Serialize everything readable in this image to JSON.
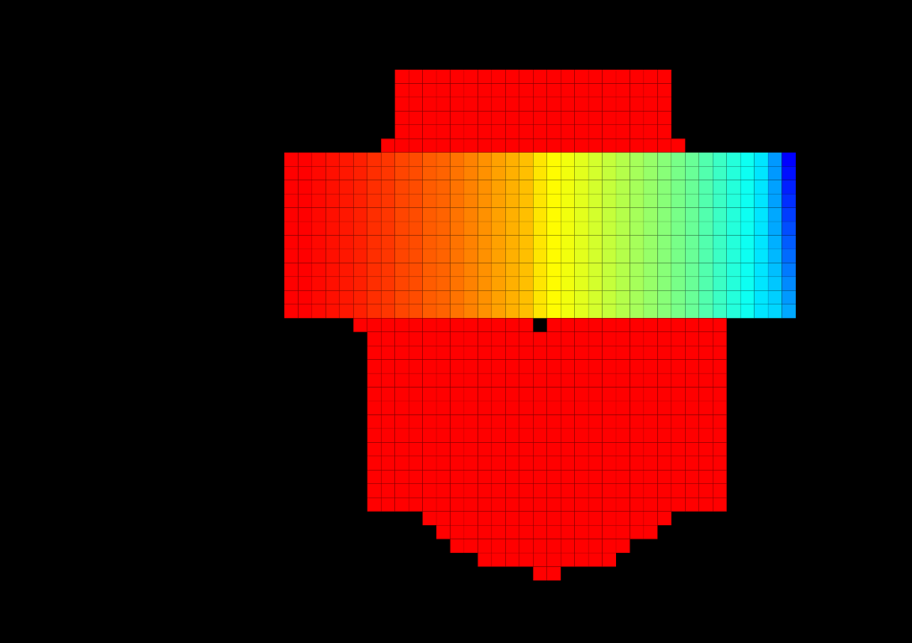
{
  "chart_data": {
    "type": "heatmap",
    "tick_labels": false,
    "zlim": [
      0,
      1
    ],
    "z": [
      [
        null,
        null,
        null,
        null,
        null,
        null,
        null,
        null,
        1,
        1,
        1,
        1,
        1,
        1,
        1,
        1,
        1,
        1,
        1,
        1,
        1,
        1,
        1,
        1,
        1,
        1,
        1,
        1,
        null,
        null,
        null,
        null,
        null,
        null,
        null,
        null,
        null
      ],
      [
        null,
        null,
        null,
        null,
        null,
        null,
        null,
        null,
        1,
        1,
        1,
        1,
        1,
        1,
        1,
        1,
        1,
        1,
        1,
        1,
        1,
        1,
        1,
        1,
        1,
        1,
        1,
        1,
        null,
        null,
        null,
        null,
        null,
        null,
        null,
        null,
        null
      ],
      [
        null,
        null,
        null,
        null,
        null,
        null,
        null,
        null,
        1,
        1,
        1,
        1,
        1,
        1,
        1,
        1,
        1,
        1,
        1,
        1,
        1,
        1,
        1,
        1,
        1,
        1,
        1,
        1,
        null,
        null,
        null,
        null,
        null,
        null,
        null,
        null,
        null
      ],
      [
        null,
        null,
        null,
        null,
        null,
        null,
        null,
        null,
        1,
        1,
        1,
        1,
        1,
        1,
        1,
        1,
        1,
        1,
        1,
        1,
        1,
        1,
        1,
        1,
        1,
        1,
        1,
        1,
        null,
        null,
        null,
        null,
        null,
        null,
        null,
        null,
        null
      ],
      [
        null,
        null,
        null,
        null,
        null,
        null,
        null,
        null,
        1,
        1,
        1,
        1,
        1,
        1,
        1,
        1,
        1,
        1,
        1,
        1,
        1,
        1,
        1,
        1,
        1,
        1,
        1,
        1,
        null,
        null,
        null,
        null,
        null,
        null,
        null,
        null,
        null
      ],
      [
        null,
        null,
        null,
        null,
        null,
        null,
        null,
        1,
        1,
        1,
        1,
        1,
        1,
        1,
        1,
        1,
        1,
        1,
        1,
        1,
        1,
        1,
        1,
        1,
        1,
        1,
        1,
        1,
        1,
        null,
        null,
        null,
        null,
        null,
        null,
        null,
        null
      ],
      [
        1,
        1,
        0.99,
        0.98,
        0.97,
        0.96,
        0.94,
        0.93,
        0.91,
        0.9,
        0.88,
        0.87,
        0.85,
        0.83,
        0.81,
        0.79,
        0.77,
        0.75,
        0.7,
        0.67,
        0.65,
        0.63,
        0.61,
        0.59,
        0.57,
        0.55,
        0.53,
        0.51,
        0.49,
        0.47,
        0.44,
        0.41,
        0.38,
        0.35,
        0.3,
        0.2,
        0.0
      ],
      [
        1,
        1,
        0.99,
        0.98,
        0.97,
        0.96,
        0.94,
        0.93,
        0.91,
        0.9,
        0.88,
        0.87,
        0.85,
        0.83,
        0.81,
        0.79,
        0.77,
        0.75,
        0.7,
        0.67,
        0.65,
        0.63,
        0.61,
        0.59,
        0.57,
        0.55,
        0.53,
        0.51,
        0.49,
        0.47,
        0.44,
        0.41,
        0.38,
        0.35,
        0.3,
        0.2,
        0.02
      ],
      [
        1,
        1,
        0.99,
        0.98,
        0.97,
        0.96,
        0.94,
        0.93,
        0.91,
        0.9,
        0.88,
        0.87,
        0.85,
        0.83,
        0.81,
        0.79,
        0.77,
        0.75,
        0.7,
        0.67,
        0.65,
        0.63,
        0.61,
        0.59,
        0.57,
        0.55,
        0.53,
        0.51,
        0.49,
        0.47,
        0.44,
        0.41,
        0.38,
        0.35,
        0.3,
        0.21,
        0.04
      ],
      [
        1,
        1,
        0.99,
        0.98,
        0.97,
        0.96,
        0.94,
        0.93,
        0.91,
        0.9,
        0.88,
        0.87,
        0.85,
        0.83,
        0.81,
        0.79,
        0.77,
        0.75,
        0.7,
        0.67,
        0.65,
        0.63,
        0.61,
        0.59,
        0.57,
        0.55,
        0.53,
        0.51,
        0.49,
        0.47,
        0.44,
        0.41,
        0.38,
        0.35,
        0.3,
        0.21,
        0.06
      ],
      [
        1,
        1,
        0.99,
        0.98,
        0.97,
        0.96,
        0.94,
        0.93,
        0.91,
        0.9,
        0.88,
        0.87,
        0.85,
        0.83,
        0.81,
        0.79,
        0.77,
        0.75,
        0.7,
        0.67,
        0.65,
        0.63,
        0.61,
        0.59,
        0.57,
        0.55,
        0.53,
        0.51,
        0.49,
        0.47,
        0.44,
        0.41,
        0.38,
        0.35,
        0.3,
        0.22,
        0.08
      ],
      [
        1,
        1,
        0.99,
        0.98,
        0.97,
        0.96,
        0.94,
        0.93,
        0.91,
        0.9,
        0.88,
        0.87,
        0.85,
        0.83,
        0.81,
        0.79,
        0.77,
        0.75,
        0.7,
        0.67,
        0.65,
        0.63,
        0.61,
        0.59,
        0.57,
        0.55,
        0.53,
        0.51,
        0.49,
        0.47,
        0.44,
        0.41,
        0.38,
        0.35,
        0.3,
        0.22,
        0.1
      ],
      [
        1,
        1,
        0.99,
        0.98,
        0.97,
        0.96,
        0.94,
        0.93,
        0.91,
        0.9,
        0.88,
        0.87,
        0.85,
        0.83,
        0.81,
        0.79,
        0.77,
        0.75,
        0.7,
        0.67,
        0.65,
        0.63,
        0.61,
        0.59,
        0.57,
        0.55,
        0.53,
        0.51,
        0.49,
        0.47,
        0.44,
        0.41,
        0.38,
        0.35,
        0.3,
        0.23,
        0.12
      ],
      [
        1,
        1,
        0.99,
        0.98,
        0.97,
        0.96,
        0.94,
        0.93,
        0.91,
        0.9,
        0.88,
        0.87,
        0.85,
        0.83,
        0.81,
        0.79,
        0.77,
        0.75,
        0.7,
        0.67,
        0.65,
        0.63,
        0.61,
        0.59,
        0.57,
        0.55,
        0.53,
        0.51,
        0.49,
        0.47,
        0.44,
        0.41,
        0.38,
        0.35,
        0.3,
        0.24,
        0.14
      ],
      [
        1,
        1,
        0.99,
        0.98,
        0.97,
        0.96,
        0.94,
        0.93,
        0.91,
        0.9,
        0.88,
        0.87,
        0.85,
        0.83,
        0.81,
        0.79,
        0.77,
        0.75,
        0.7,
        0.67,
        0.65,
        0.63,
        0.61,
        0.59,
        0.57,
        0.55,
        0.53,
        0.51,
        0.49,
        0.47,
        0.44,
        0.41,
        0.38,
        0.35,
        0.3,
        0.25,
        0.16
      ],
      [
        1,
        1,
        0.99,
        0.98,
        0.97,
        0.96,
        0.94,
        0.93,
        0.91,
        0.9,
        0.88,
        0.87,
        0.85,
        0.83,
        0.81,
        0.79,
        0.77,
        0.75,
        0.7,
        0.67,
        0.65,
        0.63,
        0.61,
        0.59,
        0.57,
        0.55,
        0.53,
        0.51,
        0.49,
        0.47,
        0.44,
        0.41,
        0.38,
        0.35,
        0.3,
        0.26,
        0.18
      ],
      [
        1,
        1,
        0.99,
        0.98,
        0.97,
        0.96,
        0.94,
        0.93,
        0.91,
        0.9,
        0.88,
        0.87,
        0.85,
        0.83,
        0.81,
        0.79,
        0.77,
        0.75,
        0.7,
        0.67,
        0.65,
        0.63,
        0.61,
        0.59,
        0.57,
        0.55,
        0.53,
        0.51,
        0.49,
        0.47,
        0.44,
        0.41,
        0.38,
        0.35,
        0.3,
        0.27,
        0.2
      ],
      [
        1,
        1,
        0.99,
        0.98,
        0.97,
        0.96,
        0.94,
        0.93,
        0.91,
        0.9,
        0.88,
        0.87,
        0.85,
        0.83,
        0.81,
        0.79,
        0.77,
        0.75,
        0.7,
        0.67,
        0.65,
        0.63,
        0.61,
        0.59,
        0.57,
        0.55,
        0.53,
        0.51,
        0.49,
        0.47,
        0.44,
        0.41,
        0.38,
        0.35,
        0.3,
        0.28,
        0.22
      ],
      [
        null,
        null,
        null,
        null,
        null,
        1,
        1,
        1,
        1,
        1,
        1,
        1,
        1,
        1,
        1,
        1,
        1,
        1,
        null,
        1,
        1,
        1,
        1,
        1,
        1,
        1,
        1,
        1,
        1,
        1,
        1,
        1,
        null,
        null,
        null,
        null,
        null
      ],
      [
        null,
        null,
        null,
        null,
        null,
        null,
        1,
        1,
        1,
        1,
        1,
        1,
        1,
        1,
        1,
        1,
        1,
        1,
        1,
        1,
        1,
        1,
        1,
        1,
        1,
        1,
        1,
        1,
        1,
        1,
        1,
        1,
        null,
        null,
        null,
        null,
        null
      ],
      [
        null,
        null,
        null,
        null,
        null,
        null,
        1,
        1,
        1,
        1,
        1,
        1,
        1,
        1,
        1,
        1,
        1,
        1,
        1,
        1,
        1,
        1,
        1,
        1,
        1,
        1,
        1,
        1,
        1,
        1,
        1,
        1,
        null,
        null,
        null,
        null,
        null
      ],
      [
        null,
        null,
        null,
        null,
        null,
        null,
        1,
        1,
        1,
        1,
        1,
        1,
        1,
        1,
        1,
        1,
        1,
        1,
        1,
        1,
        1,
        1,
        1,
        1,
        1,
        1,
        1,
        1,
        1,
        1,
        1,
        1,
        null,
        null,
        null,
        null,
        null
      ],
      [
        null,
        null,
        null,
        null,
        null,
        null,
        1,
        1,
        1,
        1,
        1,
        1,
        1,
        1,
        1,
        1,
        1,
        1,
        1,
        1,
        1,
        1,
        1,
        1,
        1,
        1,
        1,
        1,
        1,
        1,
        1,
        1,
        null,
        null,
        null,
        null,
        null
      ],
      [
        null,
        null,
        null,
        null,
        null,
        null,
        1,
        1,
        1,
        1,
        1,
        1,
        1,
        1,
        1,
        1,
        1,
        1,
        1,
        1,
        1,
        1,
        1,
        1,
        1,
        1,
        1,
        1,
        1,
        1,
        1,
        1,
        null,
        null,
        null,
        null,
        null
      ],
      [
        null,
        null,
        null,
        null,
        null,
        null,
        1,
        1,
        1,
        1,
        1,
        1,
        1,
        1,
        1,
        1,
        1,
        1,
        1,
        1,
        1,
        1,
        1,
        1,
        1,
        1,
        1,
        1,
        1,
        1,
        1,
        1,
        null,
        null,
        null,
        null,
        null
      ],
      [
        null,
        null,
        null,
        null,
        null,
        null,
        1,
        1,
        1,
        1,
        1,
        1,
        1,
        1,
        1,
        1,
        1,
        1,
        1,
        1,
        1,
        1,
        1,
        1,
        1,
        1,
        1,
        1,
        1,
        1,
        1,
        1,
        null,
        null,
        null,
        null,
        null
      ],
      [
        null,
        null,
        null,
        null,
        null,
        null,
        1,
        1,
        1,
        1,
        1,
        1,
        1,
        1,
        1,
        1,
        1,
        1,
        1,
        1,
        1,
        1,
        1,
        1,
        1,
        1,
        1,
        1,
        1,
        1,
        1,
        1,
        null,
        null,
        null,
        null,
        null
      ],
      [
        null,
        null,
        null,
        null,
        null,
        null,
        1,
        1,
        1,
        1,
        1,
        1,
        1,
        1,
        1,
        1,
        1,
        1,
        1,
        1,
        1,
        1,
        1,
        1,
        1,
        1,
        1,
        1,
        1,
        1,
        1,
        1,
        null,
        null,
        null,
        null,
        null
      ],
      [
        null,
        null,
        null,
        null,
        null,
        null,
        1,
        1,
        1,
        1,
        1,
        1,
        1,
        1,
        1,
        1,
        1,
        1,
        1,
        1,
        1,
        1,
        1,
        1,
        1,
        1,
        1,
        1,
        1,
        1,
        1,
        1,
        null,
        null,
        null,
        null,
        null
      ],
      [
        null,
        null,
        null,
        null,
        null,
        null,
        1,
        1,
        1,
        1,
        1,
        1,
        1,
        1,
        1,
        1,
        1,
        1,
        1,
        1,
        1,
        1,
        1,
        1,
        1,
        1,
        1,
        1,
        1,
        1,
        1,
        1,
        null,
        null,
        null,
        null,
        null
      ],
      [
        null,
        null,
        null,
        null,
        null,
        null,
        1,
        1,
        1,
        1,
        1,
        1,
        1,
        1,
        1,
        1,
        1,
        1,
        1,
        1,
        1,
        1,
        1,
        1,
        1,
        1,
        1,
        1,
        1,
        1,
        1,
        1,
        null,
        null,
        null,
        null,
        null
      ],
      [
        null,
        null,
        null,
        null,
        null,
        null,
        1,
        1,
        1,
        1,
        1,
        1,
        1,
        1,
        1,
        1,
        1,
        1,
        1,
        1,
        1,
        1,
        1,
        1,
        1,
        1,
        1,
        1,
        1,
        1,
        1,
        1,
        null,
        null,
        null,
        null,
        null
      ],
      [
        null,
        null,
        null,
        null,
        null,
        null,
        null,
        null,
        null,
        null,
        1,
        1,
        1,
        1,
        1,
        1,
        1,
        1,
        1,
        1,
        1,
        1,
        1,
        1,
        1,
        1,
        1,
        1,
        null,
        null,
        null,
        null,
        null,
        null,
        null,
        null,
        null
      ],
      [
        null,
        null,
        null,
        null,
        null,
        null,
        null,
        null,
        null,
        null,
        null,
        1,
        1,
        1,
        1,
        1,
        1,
        1,
        1,
        1,
        1,
        1,
        1,
        1,
        1,
        1,
        1,
        null,
        null,
        null,
        null,
        null,
        null,
        null,
        null,
        null,
        null
      ],
      [
        null,
        null,
        null,
        null,
        null,
        null,
        null,
        null,
        null,
        null,
        null,
        null,
        1,
        1,
        1,
        1,
        1,
        1,
        1,
        1,
        1,
        1,
        1,
        1,
        1,
        null,
        null,
        null,
        null,
        null,
        null,
        null,
        null,
        null,
        null,
        null,
        null
      ],
      [
        null,
        null,
        null,
        null,
        null,
        null,
        null,
        null,
        null,
        null,
        null,
        null,
        null,
        null,
        1,
        1,
        1,
        1,
        1,
        1,
        1,
        1,
        1,
        1,
        null,
        null,
        null,
        null,
        null,
        null,
        null,
        null,
        null,
        null,
        null,
        null,
        null
      ],
      [
        null,
        null,
        null,
        null,
        null,
        null,
        null,
        null,
        null,
        null,
        null,
        null,
        null,
        null,
        null,
        null,
        null,
        null,
        1,
        1,
        null,
        null,
        null,
        null,
        null,
        null,
        null,
        null,
        null,
        null,
        null,
        null,
        null,
        null,
        null,
        null,
        null
      ]
    ]
  }
}
